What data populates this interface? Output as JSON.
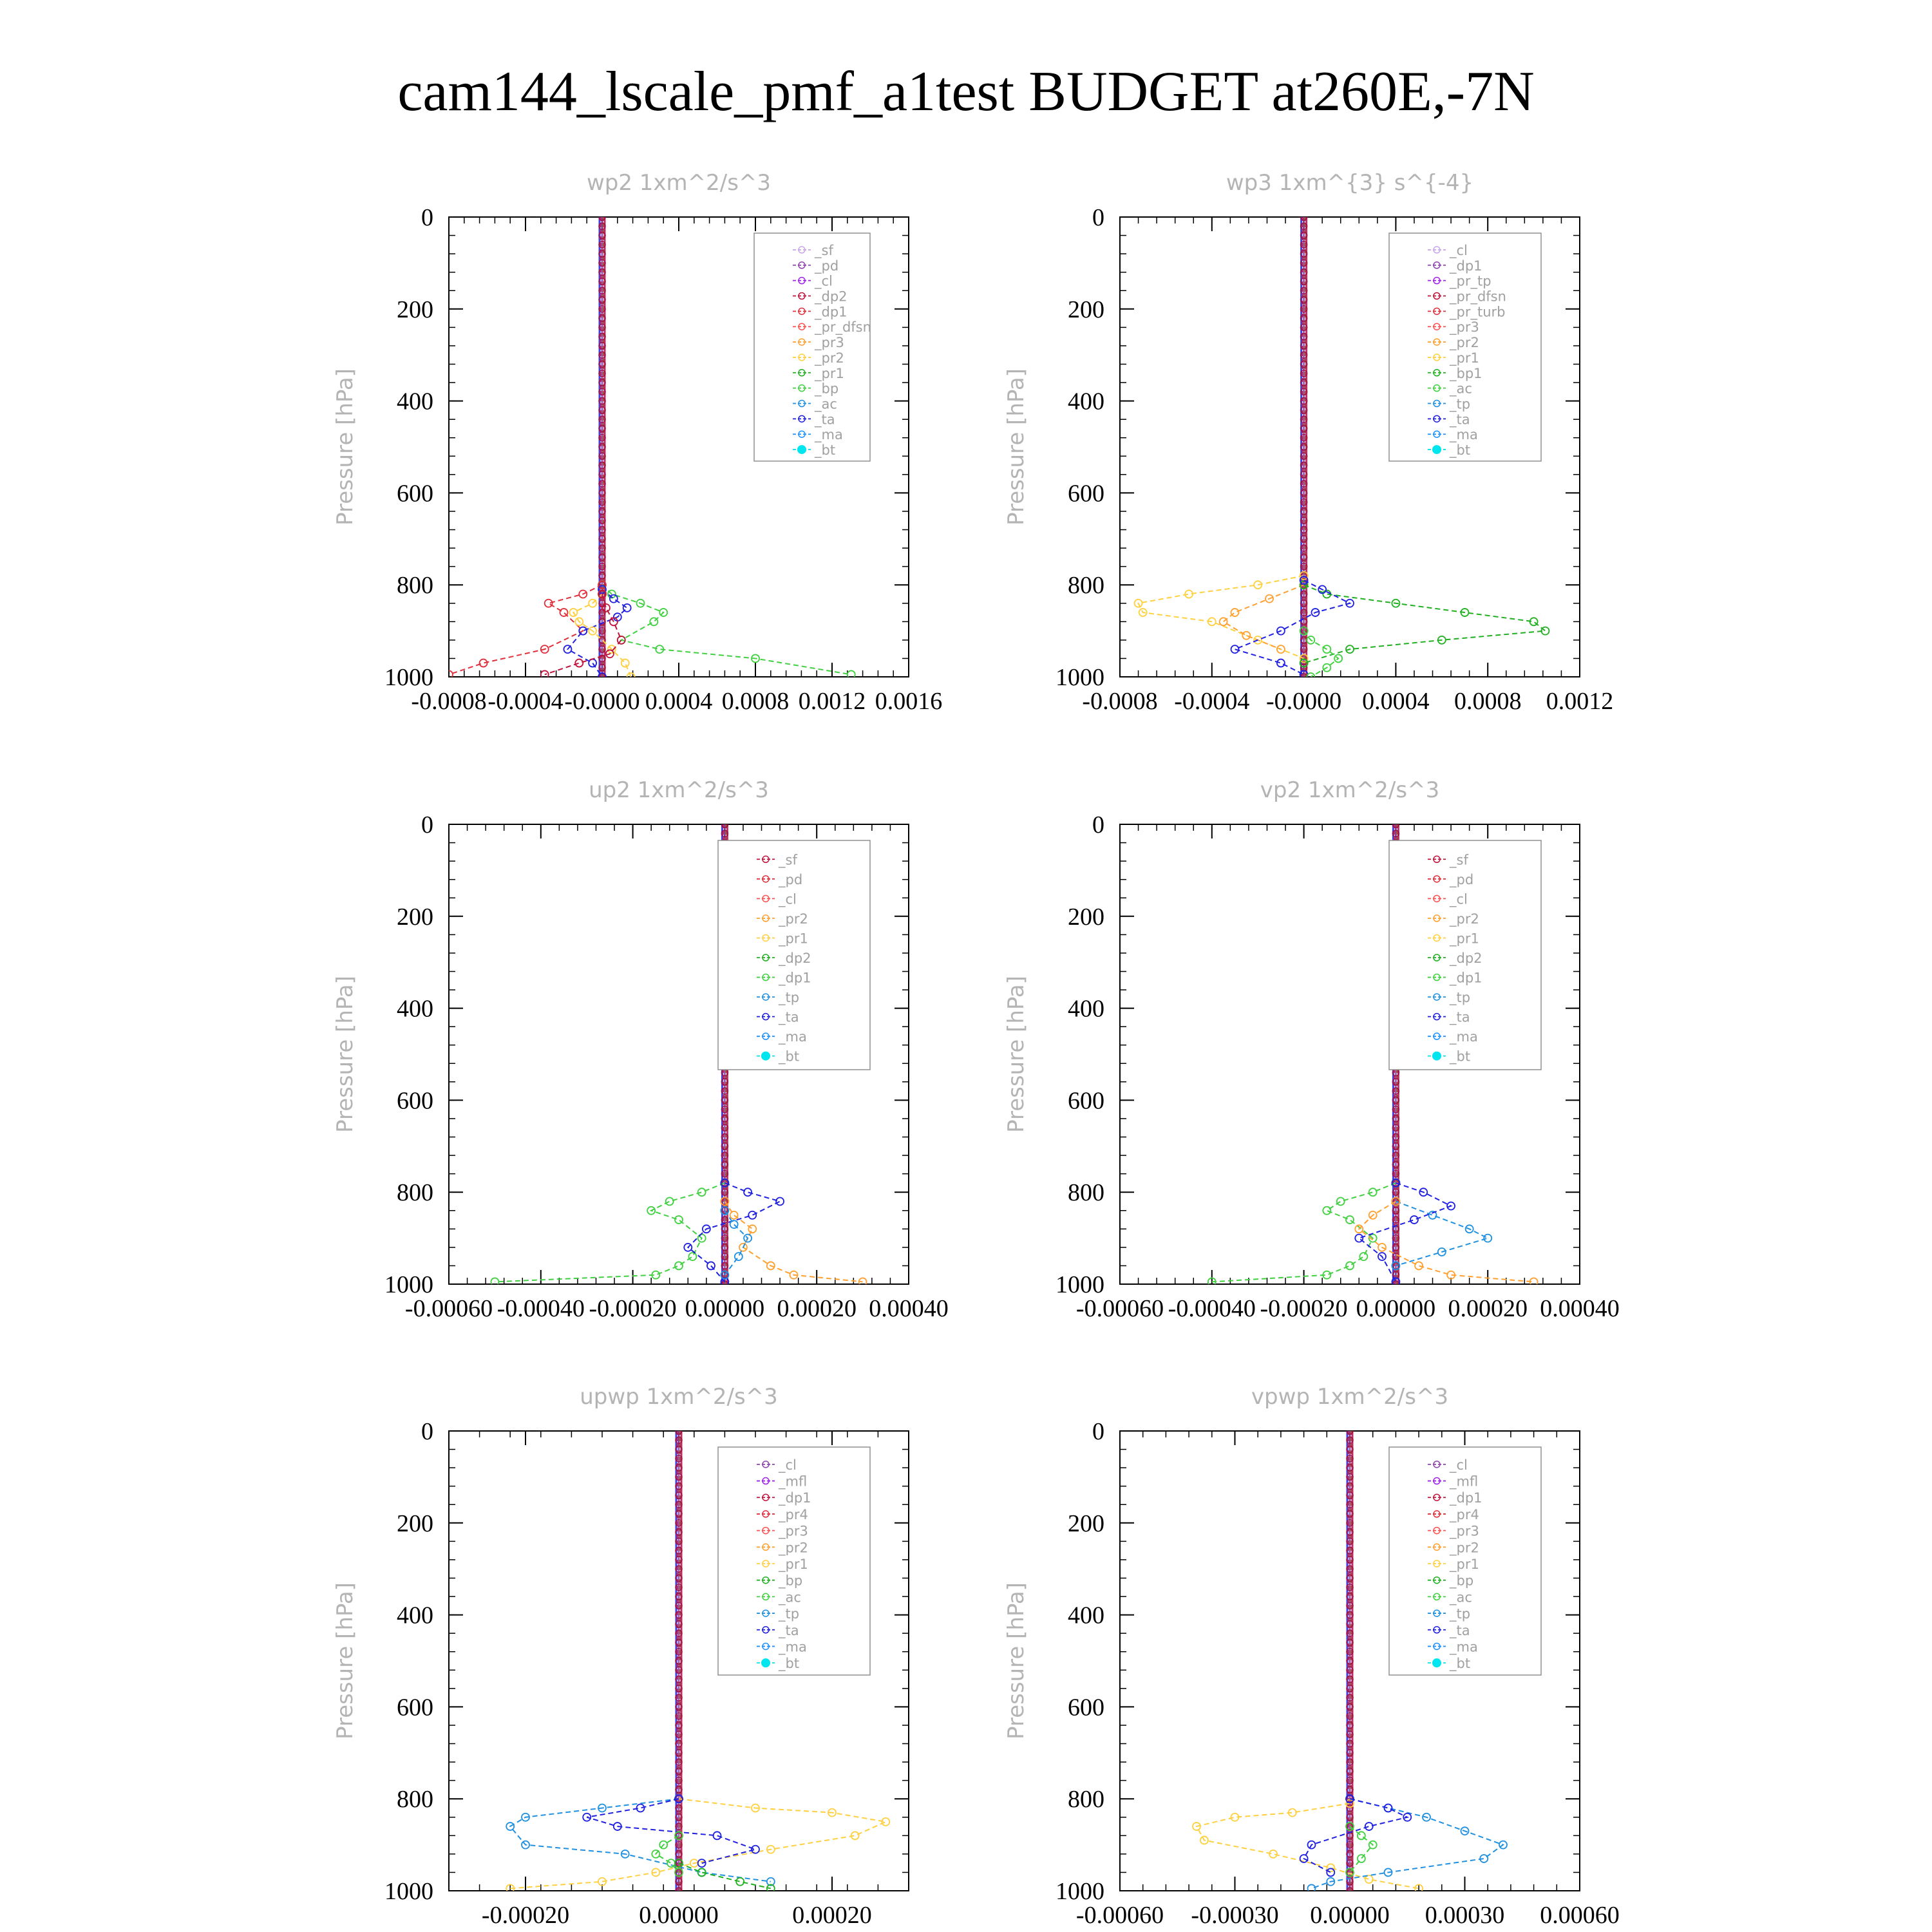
{
  "title": "cam144_lscale_pmf_a1test  BUDGET at260E,-7N",
  "colors": {
    "axis": "#000000",
    "panel_title": "#b4b4b4",
    "ylabel": "#b4b4b4",
    "legend_text": "#a0a0a0",
    "legend_border": "#909090"
  },
  "chart_data": [
    {
      "type": "line",
      "title": "wp2   1xm^2/s^3",
      "ylabel": "Pressure [hPa]",
      "xlim": [
        -0.0008,
        0.0016
      ],
      "ylim": [
        1000,
        0
      ],
      "xticks": [
        -0.0008,
        -0.0004,
        0.0,
        0.0004,
        0.0008,
        0.0012,
        0.0016
      ],
      "xtick_labels": [
        "-0.0008",
        "-0.0004",
        "-0.0000",
        "0.0004",
        "0.0008",
        "0.0012",
        "0.0016"
      ],
      "yticks": [
        0,
        200,
        400,
        600,
        800,
        1000
      ],
      "ytick_labels": [
        "0",
        "200",
        "400",
        "600",
        "800",
        "1000"
      ],
      "legend": [
        "_sf",
        "_pd",
        "_cl",
        "_dp2",
        "_dp1",
        "_pr_dfsn",
        "_pr3",
        "_pr2",
        "_pr1",
        "_bp",
        "_ac",
        "_ta",
        "_ma",
        "_bt"
      ],
      "legend_colors": [
        "#c9a8e8",
        "#8e44ad",
        "#a020f0",
        "#c0143c",
        "#e0303c",
        "#ff5050",
        "#ffa030",
        "#ffd040",
        "#20b020",
        "#40d040",
        "#2090e0",
        "#2020e0",
        "#1e90ff",
        "#00e5ee"
      ],
      "series": [
        {
          "name": "_bp",
          "color": "#40d040",
          "x": [
            0,
            5e-05,
            0.0002,
            0.00032,
            0.00027,
            0.0001,
            0.0003,
            0.0008,
            0.0013
          ],
          "y": [
            800,
            820,
            840,
            860,
            880,
            920,
            940,
            960,
            995
          ]
        },
        {
          "name": "_dp1",
          "color": "#e0303c",
          "x": [
            0,
            -0.0001,
            -0.00028,
            -0.0002,
            -0.0001,
            -0.0003,
            -0.00062,
            -0.0008
          ],
          "y": [
            800,
            820,
            840,
            860,
            900,
            940,
            970,
            995
          ]
        },
        {
          "name": "_ta",
          "color": "#2020e0",
          "x": [
            0,
            6e-05,
            0.00013,
            8e-05,
            -0.0001,
            -0.00018,
            -5e-05,
            0
          ],
          "y": [
            810,
            830,
            850,
            870,
            900,
            940,
            970,
            1000
          ]
        },
        {
          "name": "_pr2",
          "color": "#ffd040",
          "x": [
            0,
            -5e-05,
            -0.00015,
            -0.00012,
            -5e-05,
            5e-05,
            0.00012,
            0.00015
          ],
          "y": [
            820,
            840,
            860,
            880,
            900,
            940,
            970,
            1000
          ]
        },
        {
          "name": "_dp2",
          "color": "#c0143c",
          "x": [
            0,
            2e-05,
            6e-05,
            0.0001,
            4e-05,
            -0.00012,
            -0.0003
          ],
          "y": [
            820,
            850,
            880,
            920,
            950,
            970,
            995
          ]
        }
      ]
    },
    {
      "type": "line",
      "title": "wp3   1xm^{3} s^{-4}",
      "ylabel": "Pressure [hPa]",
      "xlim": [
        -0.0008,
        0.0012
      ],
      "ylim": [
        1000,
        0
      ],
      "xticks": [
        -0.0008,
        -0.0004,
        0.0,
        0.0004,
        0.0008,
        0.0012
      ],
      "xtick_labels": [
        "-0.0008",
        "-0.0004",
        "-0.0000",
        "0.0004",
        "0.0008",
        "0.0012"
      ],
      "yticks": [
        0,
        200,
        400,
        600,
        800,
        1000
      ],
      "ytick_labels": [
        "0",
        "200",
        "400",
        "600",
        "800",
        "1000"
      ],
      "legend": [
        "_cl",
        "_dp1",
        "_pr_tp",
        "_pr_dfsn",
        "_pr_turb",
        "_pr3",
        "_pr2",
        "_pr1",
        "_bp1",
        "_ac",
        "_tp",
        "_ta",
        "_ma",
        "_bt"
      ],
      "legend_colors": [
        "#c9a8e8",
        "#8e44ad",
        "#a020f0",
        "#c0143c",
        "#e0303c",
        "#ff5050",
        "#ffa030",
        "#ffd040",
        "#20b020",
        "#40d040",
        "#2090e0",
        "#2020e0",
        "#1e90ff",
        "#00e5ee"
      ],
      "series": [
        {
          "name": "_pr1",
          "color": "#ffd040",
          "x": [
            0,
            -0.0002,
            -0.0005,
            -0.00072,
            -0.0007,
            -0.0004,
            -0.0002,
            0
          ],
          "y": [
            780,
            800,
            820,
            840,
            860,
            880,
            920,
            960
          ]
        },
        {
          "name": "_pr2",
          "color": "#ffa030",
          "x": [
            0,
            -0.00015,
            -0.0003,
            -0.00035,
            -0.00025,
            -0.0001
          ],
          "y": [
            800,
            830,
            860,
            880,
            910,
            940
          ]
        },
        {
          "name": "_bp1",
          "color": "#20b020",
          "x": [
            0,
            0.0001,
            0.0004,
            0.0007,
            0.001,
            0.00105,
            0.0006,
            0.0002,
            0
          ],
          "y": [
            800,
            820,
            840,
            860,
            880,
            900,
            920,
            940,
            970
          ]
        },
        {
          "name": "_ta",
          "color": "#2020e0",
          "x": [
            0,
            8e-05,
            0.0002,
            5e-05,
            -0.0001,
            -0.0003,
            -0.0001,
            0
          ],
          "y": [
            790,
            810,
            840,
            860,
            900,
            940,
            970,
            995
          ]
        },
        {
          "name": "_ac",
          "color": "#40d040",
          "x": [
            0,
            3e-05,
            0.0001,
            0.00015,
            0.0001,
            3e-05
          ],
          "y": [
            900,
            920,
            940,
            960,
            980,
            1000
          ]
        }
      ]
    },
    {
      "type": "line",
      "title": "up2   1xm^2/s^3",
      "ylabel": "Pressure [hPa]",
      "xlim": [
        -0.0006,
        0.0004
      ],
      "ylim": [
        1000,
        0
      ],
      "xticks": [
        -0.0006,
        -0.0004,
        -0.0002,
        0.0,
        0.0002,
        0.0004
      ],
      "xtick_labels": [
        "-0.00060",
        "-0.00040",
        "-0.00020",
        "0.00000",
        "0.00020",
        "0.00040"
      ],
      "yticks": [
        0,
        200,
        400,
        600,
        800,
        1000
      ],
      "ytick_labels": [
        "0",
        "200",
        "400",
        "600",
        "800",
        "1000"
      ],
      "legend": [
        "_sf",
        "_pd",
        "_cl",
        "_pr2",
        "_pr1",
        "_dp2",
        "_dp1",
        "_tp",
        "_ta",
        "_ma",
        "_bt"
      ],
      "legend_colors": [
        "#c0143c",
        "#e0303c",
        "#ff5050",
        "#ffa030",
        "#ffd040",
        "#20b020",
        "#40d040",
        "#2090e0",
        "#2020e0",
        "#1e90ff",
        "#00e5ee"
      ],
      "series": [
        {
          "name": "_dp1",
          "color": "#40d040",
          "x": [
            0,
            -5e-05,
            -0.00012,
            -0.00016,
            -0.0001,
            -5e-05,
            -7e-05,
            -0.0001,
            -0.00015,
            -0.0005
          ],
          "y": [
            780,
            800,
            820,
            840,
            860,
            900,
            940,
            960,
            980,
            995
          ]
        },
        {
          "name": "_ta",
          "color": "#2020e0",
          "x": [
            0,
            5e-05,
            0.00012,
            6e-05,
            -4e-05,
            -8e-05,
            -3e-05,
            0
          ],
          "y": [
            780,
            800,
            820,
            850,
            880,
            920,
            960,
            995
          ]
        },
        {
          "name": "_pr2",
          "color": "#ffa030",
          "x": [
            0,
            2e-05,
            6e-05,
            4e-05,
            0.0001,
            0.00015,
            0.0003
          ],
          "y": [
            820,
            850,
            880,
            920,
            960,
            980,
            995
          ]
        },
        {
          "name": "_tp",
          "color": "#2090e0",
          "x": [
            0,
            2e-05,
            5e-05,
            3e-05,
            0.0
          ],
          "y": [
            840,
            870,
            900,
            940,
            980
          ]
        }
      ]
    },
    {
      "type": "line",
      "title": "vp2   1xm^2/s^3",
      "ylabel": "Pressure [hPa]",
      "xlim": [
        -0.0006,
        0.0004
      ],
      "ylim": [
        1000,
        0
      ],
      "xticks": [
        -0.0006,
        -0.0004,
        -0.0002,
        0.0,
        0.0002,
        0.0004
      ],
      "xtick_labels": [
        "-0.00060",
        "-0.00040",
        "-0.00020",
        "0.00000",
        "0.00020",
        "0.00040"
      ],
      "yticks": [
        0,
        200,
        400,
        600,
        800,
        1000
      ],
      "ytick_labels": [
        "0",
        "200",
        "400",
        "600",
        "800",
        "1000"
      ],
      "legend": [
        "_sf",
        "_pd",
        "_cl",
        "_pr2",
        "_pr1",
        "_dp2",
        "_dp1",
        "_tp",
        "_ta",
        "_ma",
        "_bt"
      ],
      "legend_colors": [
        "#c0143c",
        "#e0303c",
        "#ff5050",
        "#ffa030",
        "#ffd040",
        "#20b020",
        "#40d040",
        "#2090e0",
        "#2020e0",
        "#1e90ff",
        "#00e5ee"
      ],
      "series": [
        {
          "name": "_dp1",
          "color": "#40d040",
          "x": [
            0,
            -5e-05,
            -0.00012,
            -0.00015,
            -0.0001,
            -5e-05,
            -7e-05,
            -0.0001,
            -0.00015,
            -0.0004
          ],
          "y": [
            780,
            800,
            820,
            840,
            860,
            900,
            940,
            960,
            980,
            995
          ]
        },
        {
          "name": "_tp",
          "color": "#2090e0",
          "x": [
            0,
            8e-05,
            0.00016,
            0.0002,
            0.0001,
            0.0
          ],
          "y": [
            820,
            850,
            880,
            900,
            930,
            960
          ]
        },
        {
          "name": "_ta",
          "color": "#2020e0",
          "x": [
            0,
            6e-05,
            0.00012,
            4e-05,
            -8e-05,
            -3e-05,
            0
          ],
          "y": [
            780,
            800,
            830,
            860,
            900,
            940,
            995
          ]
        },
        {
          "name": "_pr2",
          "color": "#ffa030",
          "x": [
            0,
            -5e-05,
            -8e-05,
            -3e-05,
            5e-05,
            0.00012,
            0.0003
          ],
          "y": [
            820,
            850,
            880,
            920,
            960,
            980,
            995
          ]
        }
      ]
    },
    {
      "type": "line",
      "title": "upwp   1xm^2/s^3",
      "ylabel": "Pressure [hPa]",
      "xlim": [
        -0.0003,
        0.0003
      ],
      "ylim": [
        1000,
        0
      ],
      "xticks": [
        -0.0002,
        0.0,
        0.0002
      ],
      "xtick_labels": [
        "-0.00020",
        "0.00000",
        "0.00020"
      ],
      "yticks": [
        0,
        200,
        400,
        600,
        800,
        1000
      ],
      "ytick_labels": [
        "0",
        "200",
        "400",
        "600",
        "800",
        "1000"
      ],
      "legend": [
        "_cl",
        "_mfl",
        "_dp1",
        "_pr4",
        "_pr3",
        "_pr2",
        "_pr1",
        "_bp",
        "_ac",
        "_tp",
        "_ta",
        "_ma",
        "_bt"
      ],
      "legend_colors": [
        "#8e44ad",
        "#a020f0",
        "#c0143c",
        "#e0303c",
        "#ff5050",
        "#ffa030",
        "#ffd040",
        "#20b020",
        "#40d040",
        "#2090e0",
        "#2020e0",
        "#1e90ff",
        "#00e5ee"
      ],
      "series": [
        {
          "name": "_pr1",
          "color": "#ffd040",
          "x": [
            0,
            0.0001,
            0.0002,
            0.00027,
            0.00023,
            0.00012,
            2e-05,
            -3e-05,
            -0.0001,
            -0.00022
          ],
          "y": [
            800,
            820,
            830,
            850,
            880,
            910,
            940,
            960,
            980,
            995
          ]
        },
        {
          "name": "_tp",
          "color": "#2090e0",
          "x": [
            0,
            -0.0001,
            -0.0002,
            -0.00022,
            -0.0002,
            -7e-05,
            3e-05,
            0.00012
          ],
          "y": [
            800,
            820,
            840,
            860,
            900,
            920,
            960,
            980
          ]
        },
        {
          "name": "_ta",
          "color": "#2020e0",
          "x": [
            0,
            -5e-05,
            -0.00012,
            -8e-05,
            5e-05,
            0.0001,
            3e-05
          ],
          "y": [
            800,
            820,
            840,
            860,
            880,
            910,
            940
          ]
        },
        {
          "name": "_ac",
          "color": "#40d040",
          "x": [
            0,
            -2e-05,
            -3e-05,
            -1e-05,
            0.0
          ],
          "y": [
            880,
            900,
            920,
            940,
            960
          ]
        },
        {
          "name": "_bp",
          "color": "#20b020",
          "x": [
            0,
            3e-05,
            8e-05,
            0.00012
          ],
          "y": [
            940,
            960,
            980,
            995
          ]
        }
      ]
    },
    {
      "type": "line",
      "title": "vpwp   1xm^2/s^3",
      "ylabel": "Pressure [hPa]",
      "xlim": [
        -0.0006,
        0.0006
      ],
      "ylim": [
        1000,
        0
      ],
      "xticks": [
        -0.0006,
        -0.0003,
        0.0,
        0.0003,
        0.0006
      ],
      "xtick_labels": [
        "-0.00060",
        "-0.00030",
        "0.00000",
        "0.00030",
        "0.00060"
      ],
      "yticks": [
        0,
        200,
        400,
        600,
        800,
        1000
      ],
      "ytick_labels": [
        "0",
        "200",
        "400",
        "600",
        "800",
        "1000"
      ],
      "legend": [
        "_cl",
        "_mfl",
        "_dp1",
        "_pr4",
        "_pr3",
        "_pr2",
        "_pr1",
        "_bp",
        "_ac",
        "_tp",
        "_ta",
        "_ma",
        "_bt"
      ],
      "legend_colors": [
        "#8e44ad",
        "#a020f0",
        "#c0143c",
        "#e0303c",
        "#ff5050",
        "#ffa030",
        "#ffd040",
        "#20b020",
        "#40d040",
        "#2090e0",
        "#2020e0",
        "#1e90ff",
        "#00e5ee"
      ],
      "series": [
        {
          "name": "_pr1",
          "color": "#ffd040",
          "x": [
            0,
            -0.00015,
            -0.0003,
            -0.0004,
            -0.00038,
            -0.0002,
            -5e-05,
            5e-05,
            0.00018
          ],
          "y": [
            810,
            830,
            840,
            860,
            890,
            920,
            950,
            975,
            995
          ]
        },
        {
          "name": "_tp",
          "color": "#2090e0",
          "x": [
            0,
            0.0001,
            0.0002,
            0.0003,
            0.0004,
            0.00035,
            0.0001,
            -5e-05,
            -0.0001
          ],
          "y": [
            800,
            820,
            840,
            870,
            900,
            930,
            960,
            980,
            995
          ]
        },
        {
          "name": "_ta",
          "color": "#2020e0",
          "x": [
            0,
            0.0001,
            0.00015,
            5e-05,
            -0.0001,
            -0.00012,
            -5e-05
          ],
          "y": [
            800,
            820,
            840,
            860,
            900,
            930,
            960
          ]
        },
        {
          "name": "_ac",
          "color": "#40d040",
          "x": [
            0,
            3e-05,
            6e-05,
            3e-05,
            0.0
          ],
          "y": [
            860,
            880,
            900,
            930,
            960
          ]
        }
      ]
    }
  ]
}
